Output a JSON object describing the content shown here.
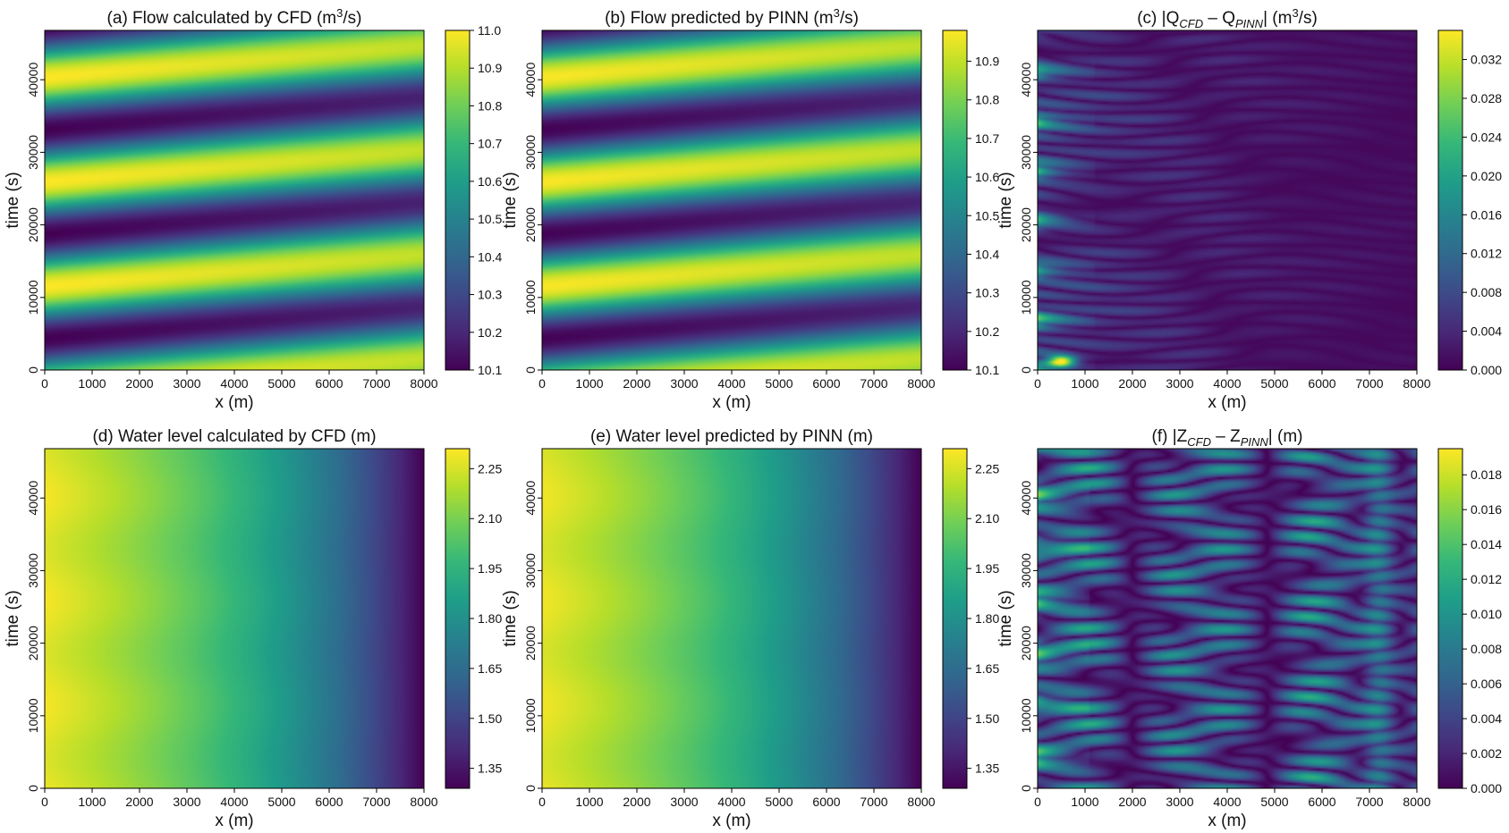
{
  "colormap": [
    "#440154",
    "#482878",
    "#3e4989",
    "#31688e",
    "#26828e",
    "#1f9e89",
    "#35b779",
    "#6ece58",
    "#b5de2b",
    "#fde725"
  ],
  "chart_data": [
    {
      "id": "a",
      "type": "heatmap",
      "field": "flow_cfd",
      "title": {
        "pre": "(a) Flow calculated by CFD (m",
        "sup": "3",
        "post": "/s)"
      },
      "xlabel": "x (m)",
      "ylabel": "time (s)",
      "xlim": [
        0,
        8000
      ],
      "ylim": [
        0,
        46800
      ],
      "xticks": [
        "0",
        "1000",
        "2000",
        "3000",
        "4000",
        "5000",
        "6000",
        "7000",
        "8000"
      ],
      "yticks": [
        "0",
        "10000",
        "20000",
        "30000",
        "40000"
      ],
      "clim": [
        10.1,
        11.0
      ],
      "cticks": [
        "10.1",
        "10.2",
        "10.3",
        "10.4",
        "10.5",
        "10.6",
        "10.7",
        "10.8",
        "10.9",
        "11.0"
      ]
    },
    {
      "id": "b",
      "type": "heatmap",
      "field": "flow_pinn",
      "title": {
        "pre": "(b) Flow predicted by PINN (m",
        "sup": "3",
        "post": "/s)"
      },
      "xlabel": "x (m)",
      "ylabel": "time (s)",
      "xlim": [
        0,
        8000
      ],
      "ylim": [
        0,
        46800
      ],
      "xticks": [
        "0",
        "1000",
        "2000",
        "3000",
        "4000",
        "5000",
        "6000",
        "7000",
        "8000"
      ],
      "yticks": [
        "0",
        "10000",
        "20000",
        "30000",
        "40000"
      ],
      "clim": [
        10.1,
        10.98
      ],
      "cticks": [
        "10.1",
        "10.2",
        "10.3",
        "10.4",
        "10.5",
        "10.6",
        "10.7",
        "10.8",
        "10.9"
      ]
    },
    {
      "id": "c",
      "type": "heatmap",
      "field": "flow_error",
      "title": {
        "pre": "(c) |Q",
        "sub1": "CFD",
        "mid": " – Q",
        "sub2": "PINN",
        "post": "| (m",
        "sup": "3",
        "post2": "/s)"
      },
      "xlabel": "x (m)",
      "ylabel": "time (s)",
      "xlim": [
        0,
        8000
      ],
      "ylim": [
        0,
        46800
      ],
      "xticks": [
        "0",
        "1000",
        "2000",
        "3000",
        "4000",
        "5000",
        "6000",
        "7000",
        "8000"
      ],
      "yticks": [
        "0",
        "10000",
        "20000",
        "30000",
        "40000"
      ],
      "clim": [
        0.0,
        0.035
      ],
      "cticks": [
        "0.000",
        "0.004",
        "0.008",
        "0.012",
        "0.016",
        "0.020",
        "0.024",
        "0.028",
        "0.032"
      ]
    },
    {
      "id": "d",
      "type": "heatmap",
      "field": "level_cfd",
      "title": {
        "pre": "(d) Water level calculated by CFD (m)"
      },
      "xlabel": "x (m)",
      "ylabel": "time (s)",
      "xlim": [
        0,
        8000
      ],
      "ylim": [
        0,
        46800
      ],
      "xticks": [
        "0",
        "1000",
        "2000",
        "3000",
        "4000",
        "5000",
        "6000",
        "7000",
        "8000"
      ],
      "yticks": [
        "0",
        "10000",
        "20000",
        "30000",
        "40000"
      ],
      "clim": [
        1.29,
        2.31
      ],
      "cticks": [
        "1.35",
        "1.50",
        "1.65",
        "1.80",
        "1.95",
        "2.10",
        "2.25"
      ]
    },
    {
      "id": "e",
      "type": "heatmap",
      "field": "level_pinn",
      "title": {
        "pre": "(e) Water level predicted by PINN (m)"
      },
      "xlabel": "x (m)",
      "ylabel": "time (s)",
      "xlim": [
        0,
        8000
      ],
      "ylim": [
        0,
        46800
      ],
      "xticks": [
        "0",
        "1000",
        "2000",
        "3000",
        "4000",
        "5000",
        "6000",
        "7000",
        "8000"
      ],
      "yticks": [
        "0",
        "10000",
        "20000",
        "30000",
        "40000"
      ],
      "clim": [
        1.29,
        2.31
      ],
      "cticks": [
        "1.35",
        "1.50",
        "1.65",
        "1.80",
        "1.95",
        "2.10",
        "2.25"
      ]
    },
    {
      "id": "f",
      "type": "heatmap",
      "field": "level_error",
      "title": {
        "pre": "(f) |Z",
        "sub1": "CFD",
        "mid": " – Z",
        "sub2": "PINN",
        "post": "| (m)"
      },
      "xlabel": "x (m)",
      "ylabel": "time (s)",
      "xlim": [
        0,
        8000
      ],
      "ylim": [
        0,
        46800
      ],
      "xticks": [
        "0",
        "1000",
        "2000",
        "3000",
        "4000",
        "5000",
        "6000",
        "7000",
        "8000"
      ],
      "yticks": [
        "0",
        "10000",
        "20000",
        "30000",
        "40000"
      ],
      "clim": [
        0.0,
        0.0195
      ],
      "cticks": [
        "0.000",
        "0.002",
        "0.004",
        "0.006",
        "0.008",
        "0.010",
        "0.012",
        "0.014",
        "0.016",
        "0.018"
      ]
    }
  ]
}
